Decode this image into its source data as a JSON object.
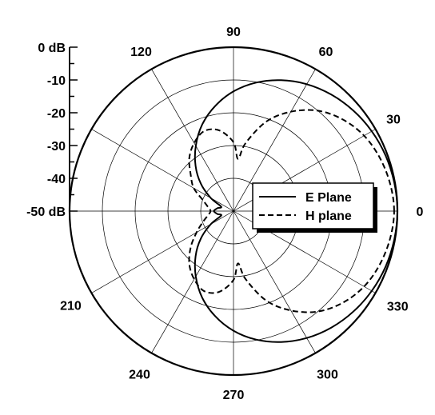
{
  "chart_data": {
    "type": "polar-line",
    "angle_ticks": [
      "0",
      "30",
      "60",
      "90",
      "120",
      "150",
      "180",
      "210",
      "240",
      "270",
      "300",
      "330"
    ],
    "angle_tick_labels_shown": [
      "0",
      "30",
      "60",
      "90",
      "120",
      "210",
      "240",
      "270",
      "300",
      "330"
    ],
    "radial_axis": {
      "range_db": [
        -50,
        0
      ],
      "ring_step_db": 10,
      "tick_labels": [
        "0 dB",
        "-10",
        "-20",
        "-30",
        "-40",
        "-50 dB"
      ]
    },
    "legend": {
      "placement": "right-center",
      "entries": [
        "E Plane",
        "H plane"
      ]
    },
    "series": [
      {
        "name": "E Plane",
        "style": "solid",
        "points": [
          {
            "deg": 0,
            "db": 0
          },
          {
            "deg": 10,
            "db": -0.2
          },
          {
            "deg": 20,
            "db": -0.6
          },
          {
            "deg": 30,
            "db": -1.3
          },
          {
            "deg": 40,
            "db": -2.3
          },
          {
            "deg": 50,
            "db": -3.6
          },
          {
            "deg": 60,
            "db": -5.3
          },
          {
            "deg": 70,
            "db": -7.5
          },
          {
            "deg": 80,
            "db": -10.2
          },
          {
            "deg": 90,
            "db": -13.5
          },
          {
            "deg": 100,
            "db": -17.5
          },
          {
            "deg": 110,
            "db": -22
          },
          {
            "deg": 120,
            "db": -27
          },
          {
            "deg": 130,
            "db": -32
          },
          {
            "deg": 140,
            "db": -37
          },
          {
            "deg": 150,
            "db": -42
          },
          {
            "deg": 160,
            "db": -46
          },
          {
            "deg": 170,
            "db": -45
          },
          {
            "deg": 180,
            "db": -44
          },
          {
            "deg": 190,
            "db": -45
          },
          {
            "deg": 200,
            "db": -46
          },
          {
            "deg": 210,
            "db": -42
          },
          {
            "deg": 220,
            "db": -37
          },
          {
            "deg": 230,
            "db": -32
          },
          {
            "deg": 240,
            "db": -27
          },
          {
            "deg": 250,
            "db": -22
          },
          {
            "deg": 260,
            "db": -17.5
          },
          {
            "deg": 270,
            "db": -13.5
          },
          {
            "deg": 280,
            "db": -10.2
          },
          {
            "deg": 290,
            "db": -7.5
          },
          {
            "deg": 300,
            "db": -5.3
          },
          {
            "deg": 310,
            "db": -3.6
          },
          {
            "deg": 320,
            "db": -2.3
          },
          {
            "deg": 330,
            "db": -1.3
          },
          {
            "deg": 340,
            "db": -0.6
          },
          {
            "deg": 350,
            "db": -0.2
          }
        ]
      },
      {
        "name": "H plane",
        "style": "dashed",
        "points": [
          {
            "deg": 0,
            "db": -1
          },
          {
            "deg": 10,
            "db": -1.5
          },
          {
            "deg": 20,
            "db": -2.5
          },
          {
            "deg": 30,
            "db": -4
          },
          {
            "deg": 40,
            "db": -6.5
          },
          {
            "deg": 50,
            "db": -10
          },
          {
            "deg": 60,
            "db": -15
          },
          {
            "deg": 70,
            "db": -21
          },
          {
            "deg": 80,
            "db": -29
          },
          {
            "deg": 85,
            "db": -34
          },
          {
            "deg": 90,
            "db": -29
          },
          {
            "deg": 100,
            "db": -25
          },
          {
            "deg": 110,
            "db": -24
          },
          {
            "deg": 120,
            "db": -26
          },
          {
            "deg": 130,
            "db": -29
          },
          {
            "deg": 140,
            "db": -33
          },
          {
            "deg": 150,
            "db": -36
          },
          {
            "deg": 160,
            "db": -40
          },
          {
            "deg": 170,
            "db": -42
          },
          {
            "deg": 180,
            "db": -43
          },
          {
            "deg": 190,
            "db": -42
          },
          {
            "deg": 200,
            "db": -40
          },
          {
            "deg": 210,
            "db": -37
          },
          {
            "deg": 220,
            "db": -33
          },
          {
            "deg": 230,
            "db": -29
          },
          {
            "deg": 240,
            "db": -26
          },
          {
            "deg": 250,
            "db": -24
          },
          {
            "deg": 260,
            "db": -25
          },
          {
            "deg": 270,
            "db": -29
          },
          {
            "deg": 275,
            "db": -34
          },
          {
            "deg": 280,
            "db": -29
          },
          {
            "deg": 290,
            "db": -21
          },
          {
            "deg": 300,
            "db": -15
          },
          {
            "deg": 310,
            "db": -10
          },
          {
            "deg": 320,
            "db": -6.5
          },
          {
            "deg": 330,
            "db": -4
          },
          {
            "deg": 340,
            "db": -2.5
          },
          {
            "deg": 350,
            "db": -1.5
          }
        ]
      }
    ]
  }
}
